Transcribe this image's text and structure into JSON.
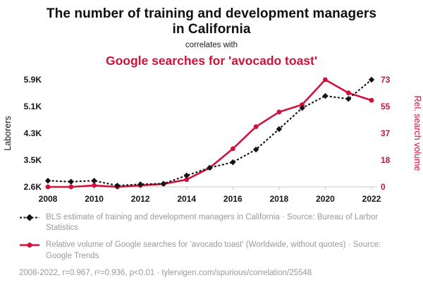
{
  "colors": {
    "red": "#cf1239",
    "ink": "#141414",
    "legend_gray": "#9a9a9a",
    "axis_line_gray": "#c9c9c9"
  },
  "chart_data": {
    "type": "line",
    "title": "The number of training and development managers in California",
    "subtitle": "correlates with",
    "title2": "Google searches for 'avocado toast'",
    "x": [
      2008,
      2009,
      2010,
      2011,
      2012,
      2013,
      2014,
      2015,
      2016,
      2017,
      2018,
      2019,
      2020,
      2021,
      2022
    ],
    "x_ticks": [
      2008,
      2010,
      2012,
      2014,
      2016,
      2018,
      2020,
      2022
    ],
    "series": [
      {
        "name": "BLS estimate of training and development managers in California",
        "axis": "left",
        "axis_label": "Laborers",
        "axis_min": 2600,
        "axis_max": 5900,
        "color": "#141414",
        "style": "dashed-diamond",
        "values": [
          2790,
          2760,
          2790,
          2640,
          2680,
          2700,
          2950,
          3190,
          3360,
          3750,
          4380,
          5030,
          5400,
          5310,
          5900
        ]
      },
      {
        "name": "Relative volume of Google searches for 'avocado toast'",
        "axis": "right",
        "axis_label": "Rel. search volume",
        "axis_min": 0,
        "axis_max": 73,
        "color": "#cf1239",
        "style": "solid-circle",
        "values": [
          0,
          0,
          1,
          0,
          1,
          2,
          5,
          13,
          26,
          41,
          51,
          56,
          73,
          64,
          59
        ]
      }
    ],
    "left_ticks": [
      "2.6K",
      "3.5K",
      "4.3K",
      "5.1K",
      "5.9K"
    ],
    "right_ticks": [
      "0",
      "18",
      "37",
      "55",
      "73"
    ],
    "grid": "off",
    "legend_position": "bottom"
  },
  "legend": {
    "items": [
      {
        "text": "BLS estimate of training and development managers in California · Source: Bureau of Larbor Statistics"
      },
      {
        "text": "Relative volume of Google searches for 'avocado toast' (Worldwide, without quotes) · Source: Google Trends"
      }
    ],
    "footer": "2008-2022, r=0.967, r²=0.936, p<0.01 · tylervigen.com/spurious/correlation/25548"
  }
}
